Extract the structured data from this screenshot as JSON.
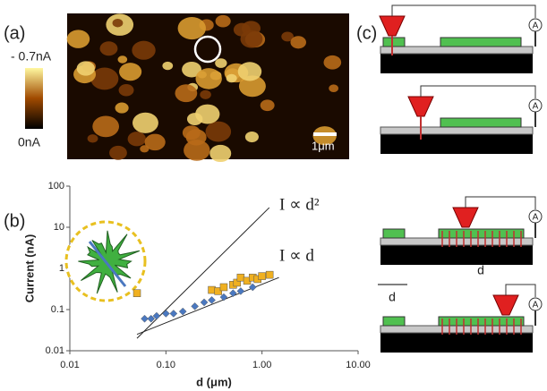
{
  "panel_a": {
    "label": "(a)",
    "colorbar_max": "- 0.7nA",
    "colorbar_min": "0nA",
    "scale_bar": "1μm"
  },
  "chart_data": {
    "type": "scatter",
    "label": "(b)",
    "xlabel": "d (μm)",
    "ylabel": "Current (nA)",
    "xlog": true,
    "ylog": true,
    "xlim": [
      0.01,
      10
    ],
    "ylim": [
      0.01,
      100
    ],
    "xticks": [
      {
        "value": 0.01,
        "label": "0.01"
      },
      {
        "value": 0.1,
        "label": "0.10"
      },
      {
        "value": 1,
        "label": "1.00"
      },
      {
        "value": 10,
        "label": "10.00"
      }
    ],
    "yticks": [
      0.01,
      0.1,
      1,
      10,
      100
    ],
    "series": [
      {
        "marker": "square",
        "color": "#f0b020",
        "x": [
          0.05,
          0.3,
          0.35,
          0.4,
          0.5,
          0.55,
          0.6,
          0.7,
          0.8,
          0.9,
          1.0,
          1.2
        ],
        "y": [
          0.25,
          0.3,
          0.28,
          0.35,
          0.4,
          0.45,
          0.6,
          0.5,
          0.6,
          0.55,
          0.65,
          0.7
        ]
      },
      {
        "marker": "diamond",
        "color": "#4a78c0",
        "x": [
          0.06,
          0.07,
          0.08,
          0.1,
          0.12,
          0.15,
          0.2,
          0.25,
          0.3,
          0.4,
          0.5,
          0.6,
          0.8
        ],
        "y": [
          0.06,
          0.06,
          0.07,
          0.08,
          0.08,
          0.09,
          0.12,
          0.15,
          0.17,
          0.2,
          0.25,
          0.28,
          0.35
        ]
      }
    ],
    "lines": [
      {
        "x": [
          0.05,
          1.19
        ],
        "y": [
          0.02,
          30
        ]
      },
      {
        "x": [
          0.05,
          1.5
        ],
        "y": [
          0.025,
          0.6
        ]
      }
    ],
    "annotations": [
      "I ∝ d²",
      "I ∝ d"
    ]
  },
  "panel_c": {
    "label": "(c)",
    "meter": "A",
    "distance": "d"
  }
}
